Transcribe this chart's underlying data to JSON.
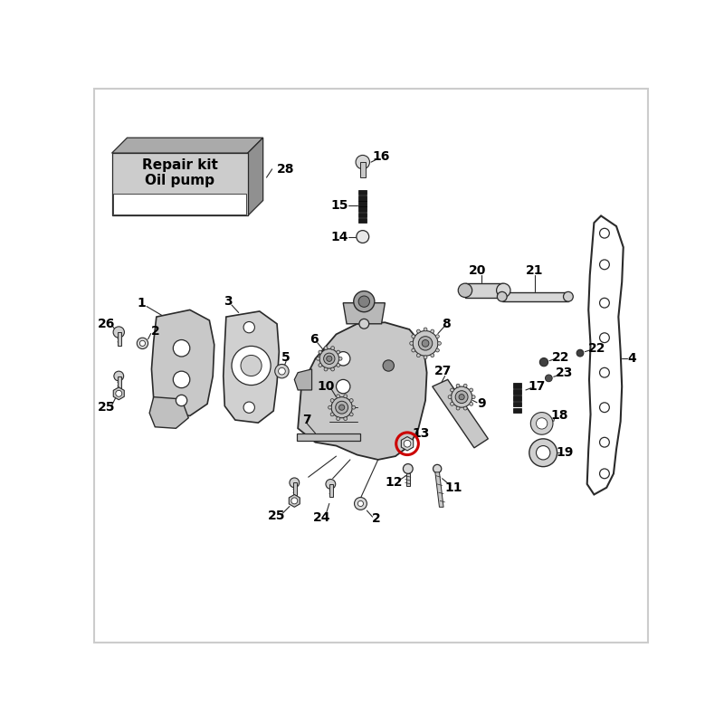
{
  "bg_color": "#ffffff",
  "line_color": "#2a2a2a",
  "highlight_color": "#cc0000",
  "repair_kit_text": "Repair kit\nOil pump",
  "label_fontsize": 10,
  "lw": 1.0
}
